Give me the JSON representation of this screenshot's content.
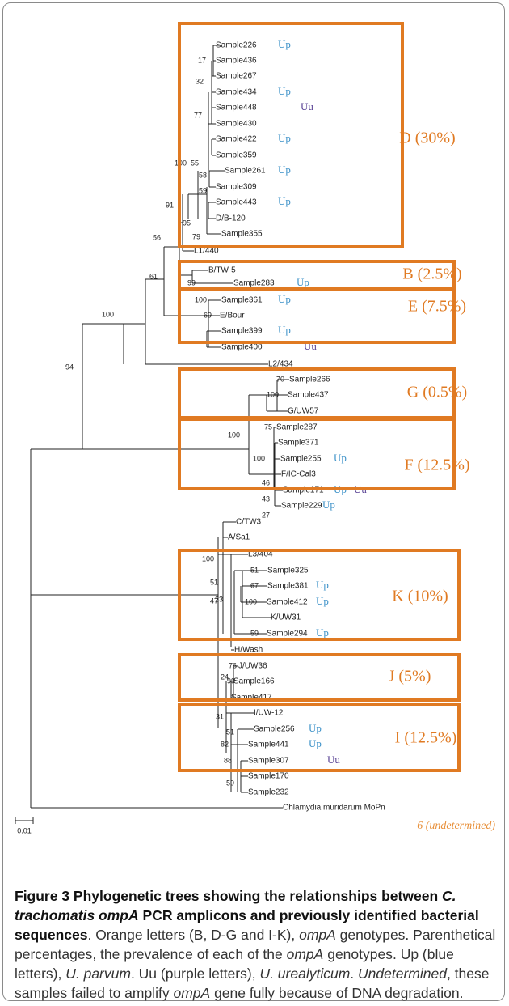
{
  "figure": {
    "clades": [
      {
        "id": "D",
        "label": "D (30%)"
      },
      {
        "id": "B",
        "label": "B (2.5%)"
      },
      {
        "id": "E",
        "label": "E (7.5%)"
      },
      {
        "id": "G",
        "label": "G (0.5%)"
      },
      {
        "id": "F",
        "label": "F (12.5%)"
      },
      {
        "id": "K",
        "label": "K (10%)"
      },
      {
        "id": "J",
        "label": "J (5%)"
      },
      {
        "id": "I",
        "label": "I (12.5%)"
      }
    ],
    "taxa": [
      {
        "name": "Sample226",
        "marks": [
          "Up"
        ]
      },
      {
        "name": "Sample436",
        "marks": []
      },
      {
        "name": "Sample267",
        "marks": []
      },
      {
        "name": "Sample434",
        "marks": [
          "Up"
        ]
      },
      {
        "name": "Sample448",
        "marks": [
          "Uu"
        ]
      },
      {
        "name": "Sample430",
        "marks": []
      },
      {
        "name": "Sample422",
        "marks": [
          "Up"
        ]
      },
      {
        "name": "Sample359",
        "marks": []
      },
      {
        "name": "Sample261",
        "marks": [
          "Up"
        ]
      },
      {
        "name": "Sample309",
        "marks": []
      },
      {
        "name": "Sample443",
        "marks": [
          "Up"
        ]
      },
      {
        "name": "D/B-120",
        "marks": []
      },
      {
        "name": "Sample355",
        "marks": []
      },
      {
        "name": "L1/440",
        "marks": []
      },
      {
        "name": "B/TW-5",
        "marks": []
      },
      {
        "name": "Sample283",
        "marks": [
          "Up"
        ]
      },
      {
        "name": "Sample361",
        "marks": [
          "Up"
        ]
      },
      {
        "name": "E/Bour",
        "marks": []
      },
      {
        "name": "Sample399",
        "marks": [
          "Up"
        ]
      },
      {
        "name": "Sample400",
        "marks": [
          "Uu"
        ]
      },
      {
        "name": "L2/434",
        "marks": []
      },
      {
        "name": "Sample266",
        "marks": []
      },
      {
        "name": "Sample437",
        "marks": []
      },
      {
        "name": "G/UW57",
        "marks": []
      },
      {
        "name": "Sample287",
        "marks": []
      },
      {
        "name": "Sample371",
        "marks": []
      },
      {
        "name": "Sample255",
        "marks": [
          "Up"
        ]
      },
      {
        "name": "F/IC-Cal3",
        "marks": []
      },
      {
        "name": "Sample171",
        "marks": [
          "Up",
          "Uu"
        ]
      },
      {
        "name": "Sample229",
        "marks": [
          "Up"
        ]
      },
      {
        "name": "C/TW3",
        "marks": []
      },
      {
        "name": "A/Sa1",
        "marks": []
      },
      {
        "name": "L3/404",
        "marks": []
      },
      {
        "name": "Sample325",
        "marks": []
      },
      {
        "name": "Sample381",
        "marks": [
          "Up"
        ]
      },
      {
        "name": "Sample412",
        "marks": [
          "Up"
        ]
      },
      {
        "name": "K/UW31",
        "marks": []
      },
      {
        "name": "Sample294",
        "marks": [
          "Up"
        ]
      },
      {
        "name": "H/Wash",
        "marks": []
      },
      {
        "name": "J/UW36",
        "marks": []
      },
      {
        "name": "Sample166",
        "marks": []
      },
      {
        "name": "Sample417",
        "marks": []
      },
      {
        "name": "I/UW-12",
        "marks": []
      },
      {
        "name": "Sample256",
        "marks": [
          "Up"
        ]
      },
      {
        "name": "Sample441",
        "marks": [
          "Up"
        ]
      },
      {
        "name": "Sample307",
        "marks": [
          "Uu"
        ]
      },
      {
        "name": "Sample170",
        "marks": []
      },
      {
        "name": "Sample232",
        "marks": []
      },
      {
        "name": "Chlamydia muridarum MoPn",
        "marks": []
      }
    ],
    "bootstrap": [
      "17",
      "32",
      "77",
      "100",
      "55",
      "58",
      "59",
      "95",
      "79",
      "91",
      "56",
      "61",
      "99",
      "100",
      "69",
      "100",
      "94",
      "70",
      "100",
      "100",
      "75",
      "100",
      "46",
      "43",
      "27",
      "100",
      "51",
      "23",
      "47",
      "51",
      "67",
      "100",
      "59",
      "76",
      "24",
      "99",
      "31",
      "51",
      "82",
      "88",
      "59"
    ],
    "scale_label": "0.01",
    "undetermined_note": "6 (undetermined)",
    "colors": {
      "box": "#e07a22",
      "clade_text": "#e07a22",
      "up": "#3f93c9",
      "uu": "#5b4596",
      "tree": "#222222",
      "note": "#e8903a"
    }
  },
  "caption": {
    "title": "Figure 3 Phylogenetic trees showing the relationships between",
    "title_species": "C. trachomatis ompA",
    "title_rest": " PCR amplicons and previously identified bacterial sequences",
    "text_1": ". Orange letters (B, D-G and I-K), ",
    "gene_1": "ompA",
    "text_2": " genotypes. Parenthetical percentages, the prevalence of each of the ",
    "gene_2": "ompA",
    "text_3": " genotypes. Up (blue letters), ",
    "up_species": "U. parvum",
    "text_4": ". Uu (purple letters), ",
    "uu_species": "U. urealyticum",
    "text_5": ". ",
    "undetermined_word": "Undetermined",
    "text_6": ", these samples failed to amplify ",
    "gene_3": "ompA",
    "text_7": " gene fully because of DNA degradation."
  }
}
